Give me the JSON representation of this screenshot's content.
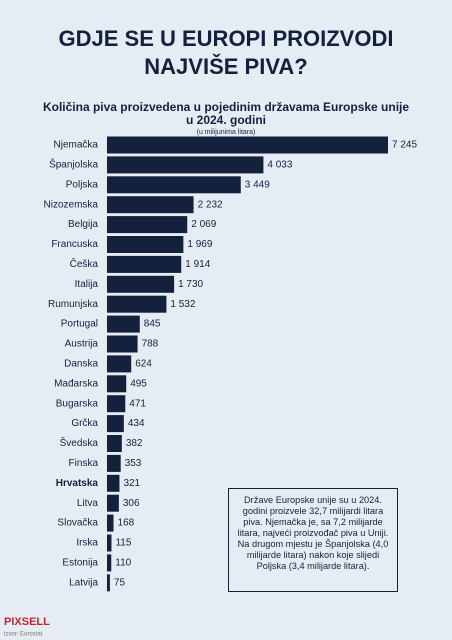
{
  "chart_data": {
    "type": "bar",
    "title": [
      "GDJE SE U EUROPI PROIZVODI",
      "NAJVIŠE PIVA?"
    ],
    "subtitle": [
      "Količina piva proizvedena u pojedinim državama Europske unije",
      "u 2024. godini"
    ],
    "unit": "(u milijunima litara)",
    "orientation": "horizontal",
    "color": "#14213d",
    "highlight": "Hrvatska",
    "categories": [
      "Njemačka",
      "Španjolska",
      "Poljska",
      "Nizozemska",
      "Belgija",
      "Francuska",
      "Češka",
      "Italija",
      "Rumunjska",
      "Portugal",
      "Austrija",
      "Danska",
      "Mađarska",
      "Bugarska",
      "Grčka",
      "Švedska",
      "Finska",
      "Hrvatska",
      "Litva",
      "Slovačka",
      "Irska",
      "Estonija",
      "Latvija"
    ],
    "values": [
      7245,
      4033,
      3449,
      2232,
      2069,
      1969,
      1914,
      1730,
      1532,
      845,
      788,
      624,
      495,
      471,
      434,
      382,
      353,
      321,
      306,
      168,
      115,
      110,
      75
    ],
    "value_labels": [
      "7 245",
      "4 033",
      "3 449",
      "2 232",
      "2 069",
      "1 969",
      "1 914",
      "1 730",
      "1 532",
      "845",
      "788",
      "624",
      "495",
      "471",
      "434",
      "382",
      "353",
      "321",
      "306",
      "168",
      "115",
      "110",
      "75"
    ],
    "note": "Države Europske unije su u 2024. godini proizvele 32,7 milijardi litara piva. Njemačka je, sa 7,2 milijarde litara, najveći proizvođač piva u Uniji. Na drugom mjestu je Španjolska (4,0 milijarde litara) nakon koje slijedi Poljska (3,4 milijarde litara).",
    "logo": "PIXSELL",
    "source": "izvor: Eurostat"
  }
}
